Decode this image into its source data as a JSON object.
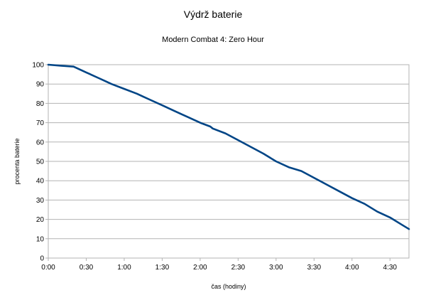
{
  "chart_data": {
    "type": "line",
    "title": "Výdrž baterie",
    "subtitle": "Modern Combat 4: Zero Hour",
    "xlabel": "čas (hodiny)",
    "ylabel": "procenta baterie",
    "x_ticks": [
      "0:00",
      "0:30",
      "1:00",
      "1:30",
      "2:00",
      "2:30",
      "3:00",
      "3:30",
      "4:00",
      "4:30"
    ],
    "y_ticks": [
      0,
      10,
      20,
      30,
      40,
      50,
      60,
      70,
      80,
      90,
      100
    ],
    "xlim": [
      "0:00",
      "4:45"
    ],
    "ylim": [
      0,
      100
    ],
    "grid": "horizontal",
    "legend": "none",
    "line_color": "#004586",
    "series": [
      {
        "x": [
          "0:00",
          "0:10",
          "0:20",
          "0:30",
          "0:40",
          "0:45",
          "0:50",
          "1:00",
          "1:10",
          "1:15",
          "1:20",
          "1:30",
          "1:40",
          "1:45",
          "1:50",
          "2:00",
          "2:08",
          "2:10",
          "2:20",
          "2:30",
          "2:40",
          "2:50",
          "3:00",
          "3:10",
          "3:20",
          "3:30",
          "3:40",
          "3:50",
          "4:00",
          "4:10",
          "4:20",
          "4:30",
          "4:40",
          "4:45"
        ],
        "y": [
          100,
          99.5,
          99,
          96,
          93,
          91.5,
          90,
          87.5,
          85,
          83.5,
          82,
          79,
          76,
          74.5,
          73,
          70,
          68,
          67,
          64.5,
          61,
          57.5,
          54,
          50,
          47,
          45,
          41.5,
          38,
          34.5,
          31,
          28,
          24,
          21,
          17,
          15
        ]
      }
    ]
  }
}
